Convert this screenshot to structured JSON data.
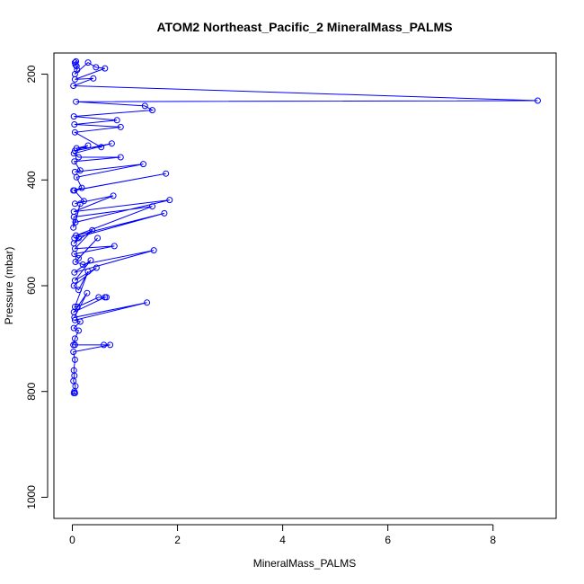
{
  "chart_data": {
    "type": "line",
    "title": "ATOM2 Northeast_Pacific_2 MineralMass_PALMS",
    "xlabel": "MineralMass_PALMS",
    "ylabel": "Pressure (mbar)",
    "xlim": [
      -0.35,
      9.2
    ],
    "ylim": [
      1040,
      160
    ],
    "y_reversed": true,
    "x_ticks": [
      0,
      2,
      4,
      6,
      8
    ],
    "y_ticks": [
      200,
      400,
      600,
      800,
      1000
    ],
    "grid": false,
    "legend": "none",
    "color": "#0000ff",
    "marker": "open-circle",
    "series": [
      {
        "x": [
          0.05,
          0.07,
          0.06,
          0.08,
          0.09,
          0.05,
          0.3,
          0.45,
          0.62,
          0.05,
          0.4,
          0.02,
          8.85,
          0.07,
          1.38,
          1.52,
          0.03,
          0.85,
          0.04,
          0.92,
          0.05,
          0.55,
          0.08,
          0.3,
          0.05,
          0.75,
          0.03,
          0.12,
          0.92,
          0.04,
          0.15,
          0.05,
          1.35,
          0.08,
          0.18,
          0.02,
          1.78,
          0.04,
          0.22,
          0.05,
          0.78,
          0.03,
          1.85,
          0.06,
          0.15,
          0.02,
          0.03,
          1.52,
          0.07,
          1.75,
          0.04,
          0.12,
          0.03,
          0.38,
          0.05,
          0.8,
          0.04,
          0.12,
          0.48,
          0.06,
          0.2,
          1.55,
          0.04,
          0.35,
          0.05,
          0.46,
          0.03,
          0.12,
          0.3,
          0.05,
          0.1,
          0.5,
          0.65,
          0.62,
          0.03,
          0.28,
          0.04,
          1.42,
          0.05,
          0.15,
          0.03,
          0.12,
          0.05,
          0.02,
          0.05,
          0.6,
          0.72,
          0.02,
          0.05,
          0.03,
          0.04,
          0.02,
          0.06,
          0.04,
          0.03,
          0.05
        ],
        "y": [
          178,
          176,
          182,
          185,
          192,
          200,
          178,
          187,
          189,
          210,
          208,
          222,
          250,
          252,
          260,
          268,
          280,
          287,
          295,
          300,
          310,
          338,
          340,
          335,
          345,
          331,
          350,
          357,
          357,
          365,
          382,
          385,
          370,
          395,
          415,
          420,
          388,
          420,
          440,
          445,
          430,
          460,
          438,
          480,
          445,
          490,
          470,
          450,
          505,
          463,
          510,
          510,
          520,
          495,
          530,
          525,
          540,
          548,
          510,
          555,
          560,
          533,
          575,
          552,
          590,
          566,
          600,
          608,
          573,
          640,
          640,
          622,
          622,
          622,
          650,
          614,
          660,
          632,
          665,
          668,
          680,
          685,
          700,
          712,
          712,
          712,
          712,
          725,
          740,
          760,
          770,
          780,
          790,
          800,
          803,
          803
        ]
      }
    ]
  }
}
